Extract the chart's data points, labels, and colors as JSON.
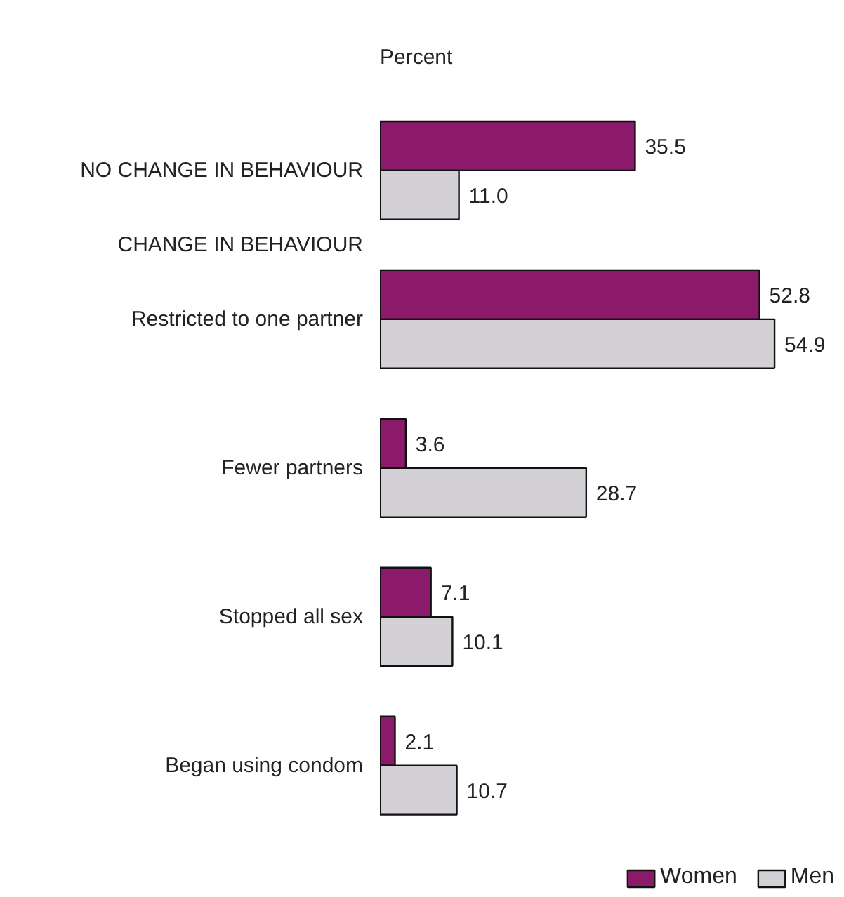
{
  "chart_data": {
    "type": "bar",
    "orientation": "horizontal",
    "title": "Percent",
    "categories": [
      "NO CHANGE IN BEHAVIOUR",
      "CHANGE IN BEHAVIOUR",
      "Restricted to one partner",
      "Fewer partners",
      "Stopped all sex",
      "Began using condom"
    ],
    "series": [
      {
        "name": "Women",
        "color": "#8b1a6b",
        "values": [
          35.5,
          null,
          52.8,
          3.6,
          7.1,
          2.1
        ],
        "value_labels": [
          "35.5",
          null,
          "52.8",
          "3.6",
          "7.1",
          "2.1"
        ]
      },
      {
        "name": "Men",
        "color": "#d4d1d6",
        "values": [
          11,
          null,
          54.9,
          28.7,
          10.1,
          10.7
        ],
        "value_labels": [
          "11.0",
          null,
          "54.9",
          "28.7",
          "10.1",
          "10.7"
        ]
      }
    ],
    "tick_labels": "y",
    "grid": false,
    "legend": "bottom right"
  }
}
